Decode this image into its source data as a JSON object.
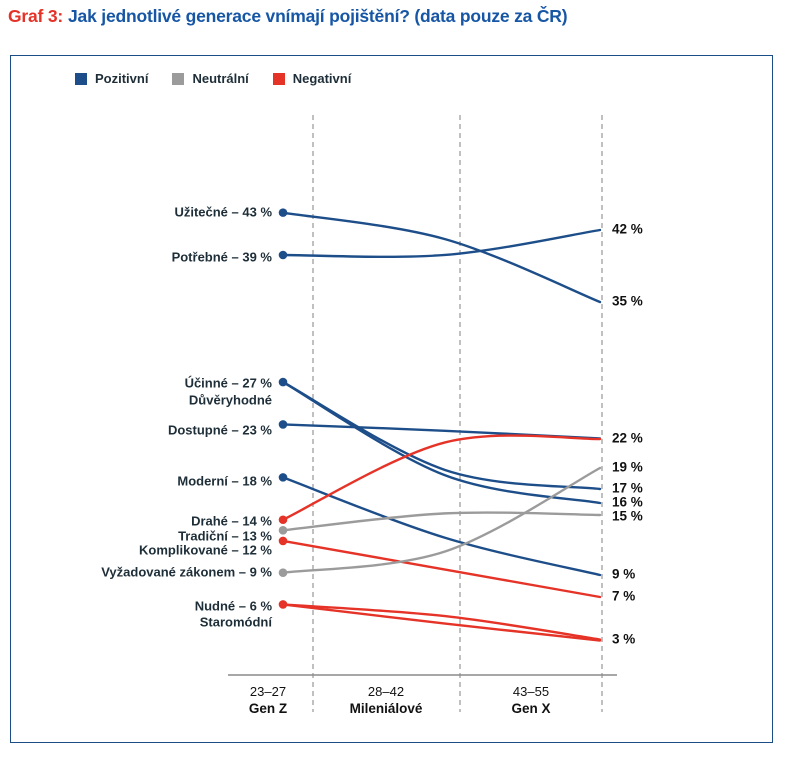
{
  "title": {
    "prefix": "Graf 3:",
    "main": "Jak jednotlivé generace vnímají pojištění? (data pouze za ČR)"
  },
  "legend": {
    "items": [
      {
        "label": "Pozitivní",
        "key": "positive"
      },
      {
        "label": "Neutrální",
        "key": "neutral"
      },
      {
        "label": "Negativní",
        "key": "negative"
      }
    ]
  },
  "colors": {
    "positive": "#1d4e89",
    "neutral": "#9b9b9b",
    "negative": "#e63328",
    "title_red": "#e53228",
    "title_blue": "#1656a5",
    "frame": "#1b4e87",
    "label_text": "#1e2e38",
    "value_text": "#111111",
    "axis": "#8a8a8a",
    "divider": "#9e9e9e"
  },
  "chart_data": {
    "type": "line",
    "variant": "slope-bump-chart",
    "title": "Graf 3: Jak jednotlivé generace vnímají pojištění? (data pouze za ČR)",
    "unit": "%",
    "ylim": [
      0,
      45
    ],
    "grid": "dashed vertical dividers between generation columns",
    "legend_position": "top-left",
    "x_axis_groups": [
      {
        "range": "23–27",
        "name": "Gen Z"
      },
      {
        "range": "28–42",
        "name": "Mileniálové"
      },
      {
        "range": "43–55",
        "name": "Gen X"
      }
    ],
    "series": [
      {
        "name": "Užitečné",
        "sentiment": "positive",
        "gen_z": 43,
        "millennials_est": 40.5,
        "gen_x": 35
      },
      {
        "name": "Potřebné",
        "sentiment": "positive",
        "gen_z": 39,
        "millennials_est": 39.0,
        "gen_x": 42
      },
      {
        "name": "Účinné",
        "sentiment": "positive",
        "gen_z": 27,
        "millennials_est": 18.7,
        "gen_x": 17
      },
      {
        "name": "Důvěryhodné",
        "sentiment": "positive",
        "gen_z": 27,
        "millennials_est": 18.2,
        "gen_x": 16
      },
      {
        "name": "Dostupné",
        "sentiment": "positive",
        "gen_z": 23,
        "millennials_est": 22.4,
        "gen_x": 22
      },
      {
        "name": "Moderní",
        "sentiment": "positive",
        "gen_z": 18,
        "millennials_est": 12.3,
        "gen_x": 9
      },
      {
        "name": "Drahé",
        "sentiment": "negative",
        "gen_z": 14,
        "millennials_est": 21.3,
        "gen_x": 22
      },
      {
        "name": "Tradiční",
        "sentiment": "neutral",
        "gen_z": 13,
        "millennials_est": 14.6,
        "gen_x": 15
      },
      {
        "name": "Komplikované",
        "sentiment": "negative",
        "gen_z": 12,
        "millennials_est": 9.3,
        "gen_x": 7
      },
      {
        "name": "Vyžadované zákonem",
        "sentiment": "neutral",
        "gen_z": 9,
        "millennials_est": 11.0,
        "gen_x": 19
      },
      {
        "name": "Nudné",
        "sentiment": "negative",
        "gen_z": 6,
        "millennials_est": 4.9,
        "gen_x": 3
      },
      {
        "name": "Staromódní",
        "sentiment": "negative",
        "gen_z": 6,
        "millennials_est": 4.2,
        "gen_x": 3
      }
    ],
    "left_labels": [
      "Užitečné – 43 %",
      "Potřebné – 39 %",
      "Účinné – 27 %",
      "Důvěryhodné",
      "Dostupné – 23 %",
      "Moderní – 18 %",
      "Drahé – 14 %",
      "Tradiční – 13 %",
      "Komplikované – 12 %",
      "Vyžadované zákonem – 9 %",
      "Nudné – 6 %",
      "Staromódní"
    ],
    "right_labels": [
      "42 %",
      "35 %",
      "22 %",
      "19 %",
      "17 %",
      "16 %",
      "15 %",
      "9 %",
      "7 %",
      "3 %"
    ]
  }
}
